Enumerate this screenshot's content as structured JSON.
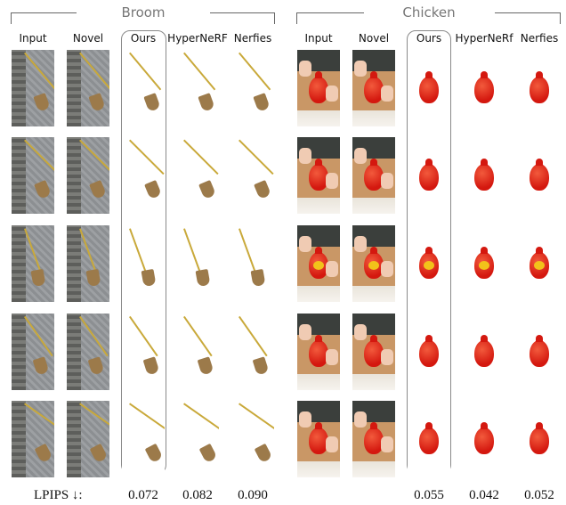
{
  "groups": [
    {
      "title": "Broom"
    },
    {
      "title": "Chicken"
    }
  ],
  "columns": {
    "input": "Input",
    "novel": "Novel",
    "ours": "Ours",
    "hypernerf": "HyperNeRF",
    "hypernerf_alt": "HyperNeRf",
    "nerfies": "Nerfies"
  },
  "lpips": {
    "label": "LPIPS ↓:",
    "broom": {
      "ours": "0.072",
      "hypernerf": "0.082",
      "nerfies": "0.090"
    },
    "chicken": {
      "ours": "0.055",
      "hypernerf": "0.042",
      "nerfies": "0.052"
    }
  },
  "colors": {
    "broom_stick": "#c9a93a",
    "broom_bristle": "#9c7a4a",
    "chicken_red": "#d4180f",
    "egg_yellow": "#f2c21a"
  }
}
